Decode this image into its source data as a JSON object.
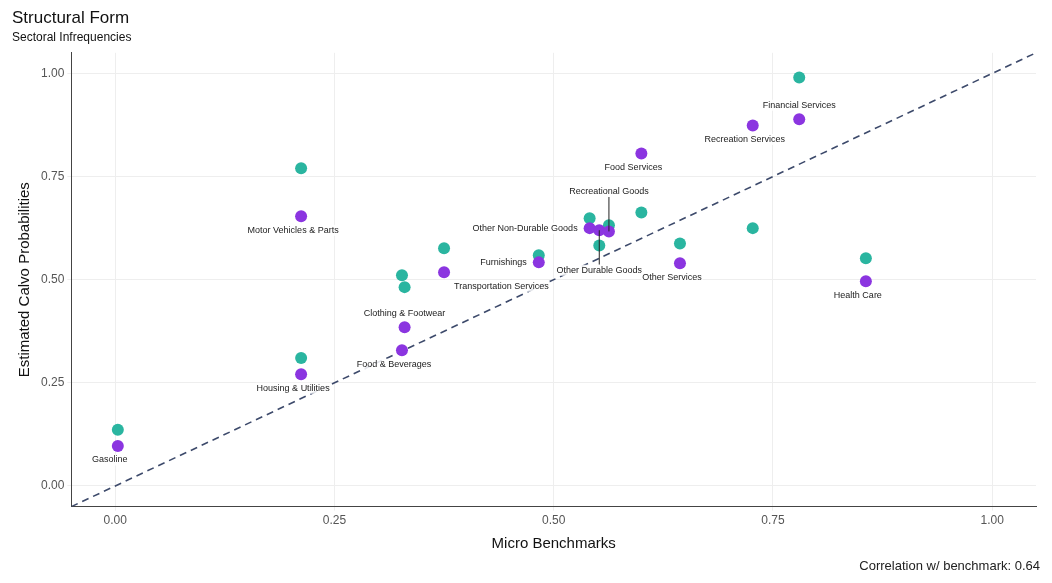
{
  "chart_data": {
    "type": "scatter",
    "title": "Structural Form",
    "subtitle": "Sectoral Infrequencies",
    "xlabel": "Micro Benchmarks",
    "ylabel": "Estimated Calvo Probabilities",
    "xlim": [
      -0.05,
      1.05
    ],
    "ylim": [
      -0.05,
      1.05
    ],
    "xticks": [
      {
        "value": 0,
        "label": "0.00"
      },
      {
        "value": 0.25,
        "label": "0.25"
      },
      {
        "value": 0.5,
        "label": "0.50"
      },
      {
        "value": 0.75,
        "label": "0.75"
      },
      {
        "value": 1,
        "label": "1.00"
      }
    ],
    "yticks": [
      {
        "value": 0,
        "label": "0.00"
      },
      {
        "value": 0.25,
        "label": "0.25"
      },
      {
        "value": 0.5,
        "label": "0.50"
      },
      {
        "value": 0.75,
        "label": "0.75"
      },
      {
        "value": 1,
        "label": "1.00"
      }
    ],
    "grid": true,
    "marker": "circle",
    "series": [
      {
        "type": "line",
        "color": "#3d4a6b",
        "line_style": "dashed",
        "marker": "none",
        "x": [
          -0.05,
          1.05
        ],
        "values": [
          -0.05,
          1.05
        ]
      },
      {
        "color": "#2ab5a0",
        "x": [
          0.003,
          0.212,
          0.212,
          0.327,
          0.33,
          0.375,
          0.483,
          0.541,
          0.552,
          0.563,
          0.6,
          0.644,
          0.727,
          0.78,
          0.856
        ],
        "values": [
          0.136,
          0.31,
          0.77,
          0.511,
          0.482,
          0.576,
          0.559,
          0.649,
          0.583,
          0.632,
          0.663,
          0.588,
          0.625,
          0.99,
          0.552
        ]
      },
      {
        "color": "#8b35e0",
        "x": [
          0.003,
          0.212,
          0.212,
          0.327,
          0.33,
          0.375,
          0.483,
          0.541,
          0.552,
          0.563,
          0.6,
          0.644,
          0.727,
          0.78,
          0.856
        ],
        "values": [
          0.097,
          0.271,
          0.654,
          0.329,
          0.385,
          0.518,
          0.542,
          0.625,
          0.62,
          0.617,
          0.806,
          0.54,
          0.874,
          0.889,
          0.496
        ]
      }
    ],
    "annotations": [
      {
        "text": "Gasoline",
        "x": 0.003,
        "y": 0.097
      },
      {
        "text": "Housing & Utilities",
        "x": 0.212,
        "y": 0.271
      },
      {
        "text": "Motor Vehicles & Parts",
        "x": 0.212,
        "y": 0.654
      },
      {
        "text": "Food & Beverages",
        "x": 0.327,
        "y": 0.329
      },
      {
        "text": "Clothing & Footwear",
        "x": 0.33,
        "y": 0.385
      },
      {
        "text": "Transportation Services",
        "x": 0.375,
        "y": 0.518
      },
      {
        "text": "Furnishings",
        "x": 0.483,
        "y": 0.542
      },
      {
        "text": "Other Non-Durable Goods",
        "x": 0.541,
        "y": 0.625
      },
      {
        "text": "Other Durable Goods",
        "x": 0.552,
        "y": 0.62
      },
      {
        "text": "Recreational Goods",
        "x": 0.563,
        "y": 0.617
      },
      {
        "text": "Food Services",
        "x": 0.6,
        "y": 0.806
      },
      {
        "text": "Other Services",
        "x": 0.644,
        "y": 0.54
      },
      {
        "text": "Recreation Services",
        "x": 0.727,
        "y": 0.874
      },
      {
        "text": "Financial Services",
        "x": 0.78,
        "y": 0.889
      },
      {
        "text": "Health Care",
        "x": 0.856,
        "y": 0.496
      },
      "Correlation w/ benchmark: 0.64"
    ]
  }
}
